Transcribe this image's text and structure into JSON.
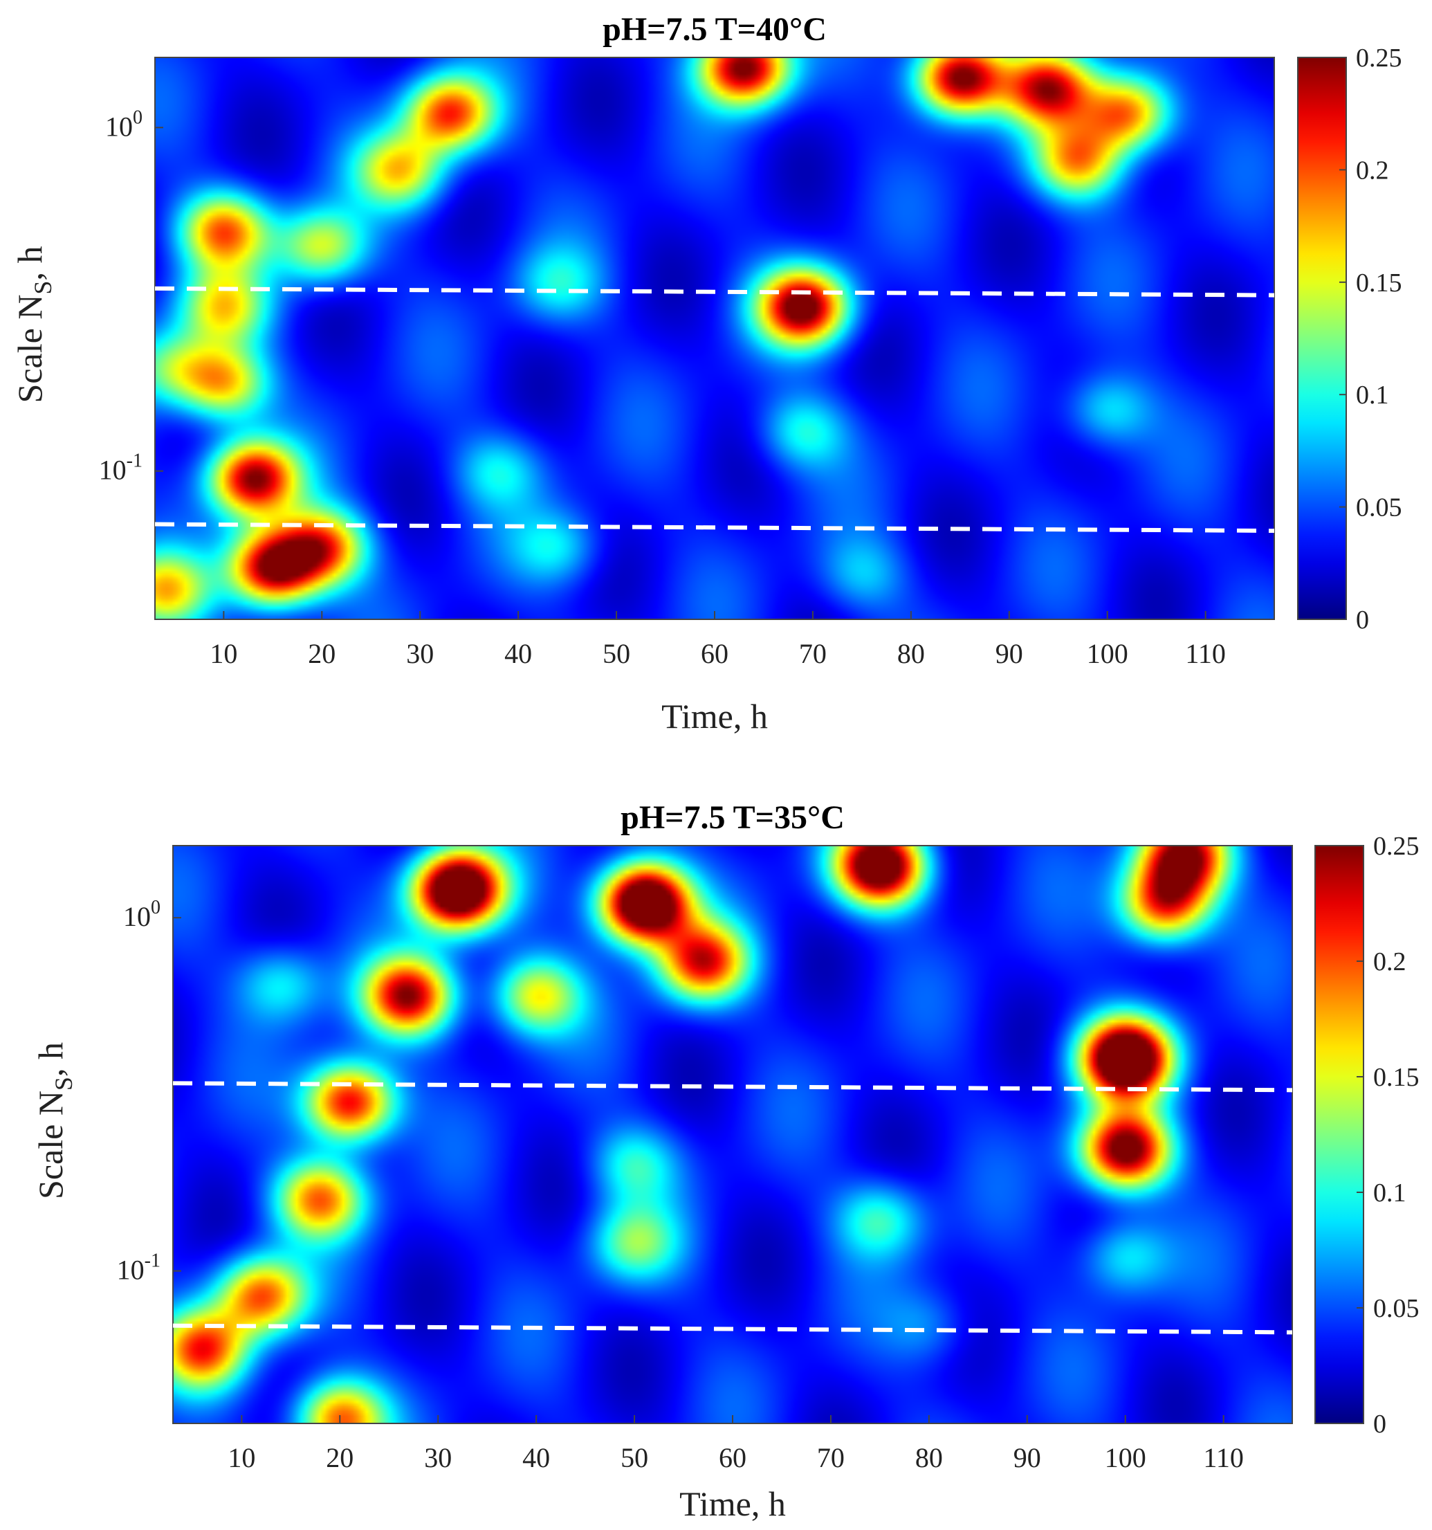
{
  "chart_data": [
    {
      "type": "heatmap",
      "title": "pH=7.5 T=40°C",
      "xlabel": "Time, h",
      "ylabel_main": "Scale N",
      "ylabel_sub": "S",
      "ylabel_tail": ", h",
      "x_ticks": [
        "10",
        "20",
        "30",
        "40",
        "50",
        "60",
        "70",
        "80",
        "90",
        "100",
        "110"
      ],
      "x_tick_values": [
        10,
        20,
        30,
        40,
        50,
        60,
        70,
        80,
        90,
        100,
        110
      ],
      "y_ticks": [
        {
          "base": "10",
          "exp": "0",
          "value": 1.0
        },
        {
          "base": "10",
          "exp": "-1",
          "value": 0.1
        }
      ],
      "xlim": [
        3,
        117
      ],
      "ylim": [
        0.037,
        1.6
      ],
      "yscale": "log",
      "colorbar": {
        "ticks": [
          "0",
          "0.05",
          "0.1",
          "0.15",
          "0.2",
          "0.25"
        ],
        "values": [
          0,
          0.05,
          0.1,
          0.15,
          0.2,
          0.25
        ],
        "range": [
          0,
          0.25
        ],
        "colormap": "jet"
      },
      "dashed_lines_scale": [
        [
          0.34,
          0.325
        ],
        [
          0.07,
          0.067
        ]
      ],
      "dashed_line_color": "#ffffff",
      "peaks": [
        {
          "t": 10,
          "s": 0.5,
          "v": 0.19
        },
        {
          "t": 10,
          "s": 0.3,
          "v": 0.15
        },
        {
          "t": 10,
          "s": 0.18,
          "v": 0.17
        },
        {
          "t": 13,
          "s": 0.095,
          "v": 0.25
        },
        {
          "t": 15,
          "s": 0.052,
          "v": 0.26
        },
        {
          "t": 20,
          "s": 0.06,
          "v": 0.2
        },
        {
          "t": 33,
          "s": 1.1,
          "v": 0.21
        },
        {
          "t": 28,
          "s": 0.75,
          "v": 0.16
        },
        {
          "t": 20,
          "s": 0.45,
          "v": 0.15
        },
        {
          "t": 63,
          "s": 1.5,
          "v": 0.26
        },
        {
          "t": 69,
          "s": 0.3,
          "v": 0.26
        },
        {
          "t": 69,
          "s": 0.13,
          "v": 0.1
        },
        {
          "t": 85,
          "s": 1.4,
          "v": 0.27
        },
        {
          "t": 94,
          "s": 1.3,
          "v": 0.22
        },
        {
          "t": 102,
          "s": 1.1,
          "v": 0.2
        },
        {
          "t": 97,
          "s": 0.8,
          "v": 0.18
        },
        {
          "t": 44,
          "s": 0.35,
          "v": 0.09
        },
        {
          "t": 44,
          "s": 0.06,
          "v": 0.09
        },
        {
          "t": 100,
          "s": 0.15,
          "v": 0.1
        },
        {
          "t": 38,
          "s": 0.1,
          "v": 0.09
        },
        {
          "t": 75,
          "s": 0.05,
          "v": 0.08
        },
        {
          "t": 5,
          "s": 0.2,
          "v": 0.12
        },
        {
          "t": 4,
          "s": 0.045,
          "v": 0.16
        }
      ]
    },
    {
      "type": "heatmap",
      "title": "pH=7.5 T=35°C",
      "xlabel": "Time, h",
      "ylabel_main": "Scale N",
      "ylabel_sub": "S",
      "ylabel_tail": ", h",
      "x_ticks": [
        "10",
        "20",
        "30",
        "40",
        "50",
        "60",
        "70",
        "80",
        "90",
        "100",
        "110"
      ],
      "x_tick_values": [
        10,
        20,
        30,
        40,
        50,
        60,
        70,
        80,
        90,
        100,
        110
      ],
      "y_ticks": [
        {
          "base": "10",
          "exp": "0",
          "value": 1.0
        },
        {
          "base": "10",
          "exp": "-1",
          "value": 0.1
        }
      ],
      "xlim": [
        3,
        117
      ],
      "ylim": [
        0.037,
        1.6
      ],
      "yscale": "log",
      "colorbar": {
        "ticks": [
          "0",
          "0.05",
          "0.1",
          "0.15",
          "0.2",
          "0.25"
        ],
        "values": [
          0,
          0.05,
          0.1,
          0.15,
          0.2,
          0.25
        ],
        "range": [
          0,
          0.25
        ],
        "colormap": "jet"
      },
      "dashed_lines_scale": [
        [
          0.34,
          0.325
        ],
        [
          0.07,
          0.067
        ]
      ],
      "dashed_line_color": "#ffffff",
      "peaks": [
        {
          "t": 32,
          "s": 1.2,
          "v": 0.33
        },
        {
          "t": 27,
          "s": 0.6,
          "v": 0.24
        },
        {
          "t": 21,
          "s": 0.3,
          "v": 0.24
        },
        {
          "t": 51,
          "s": 1.1,
          "v": 0.34
        },
        {
          "t": 57,
          "s": 0.75,
          "v": 0.22
        },
        {
          "t": 75,
          "s": 1.4,
          "v": 0.3
        },
        {
          "t": 100,
          "s": 0.4,
          "v": 0.33
        },
        {
          "t": 100,
          "s": 0.22,
          "v": 0.27
        },
        {
          "t": 104,
          "s": 1.1,
          "v": 0.22
        },
        {
          "t": 106,
          "s": 1.5,
          "v": 0.25
        },
        {
          "t": 18,
          "s": 0.16,
          "v": 0.19
        },
        {
          "t": 12,
          "s": 0.085,
          "v": 0.2
        },
        {
          "t": 6,
          "s": 0.06,
          "v": 0.2
        },
        {
          "t": 20,
          "s": 0.038,
          "v": 0.2
        },
        {
          "t": 40,
          "s": 0.6,
          "v": 0.16
        },
        {
          "t": 50,
          "s": 0.2,
          "v": 0.1
        },
        {
          "t": 50,
          "s": 0.12,
          "v": 0.12
        },
        {
          "t": 75,
          "s": 0.14,
          "v": 0.11
        },
        {
          "t": 14,
          "s": 0.65,
          "v": 0.1
        },
        {
          "t": 100,
          "s": 0.11,
          "v": 0.1
        },
        {
          "t": 80,
          "s": 0.07,
          "v": 0.07
        }
      ]
    }
  ]
}
